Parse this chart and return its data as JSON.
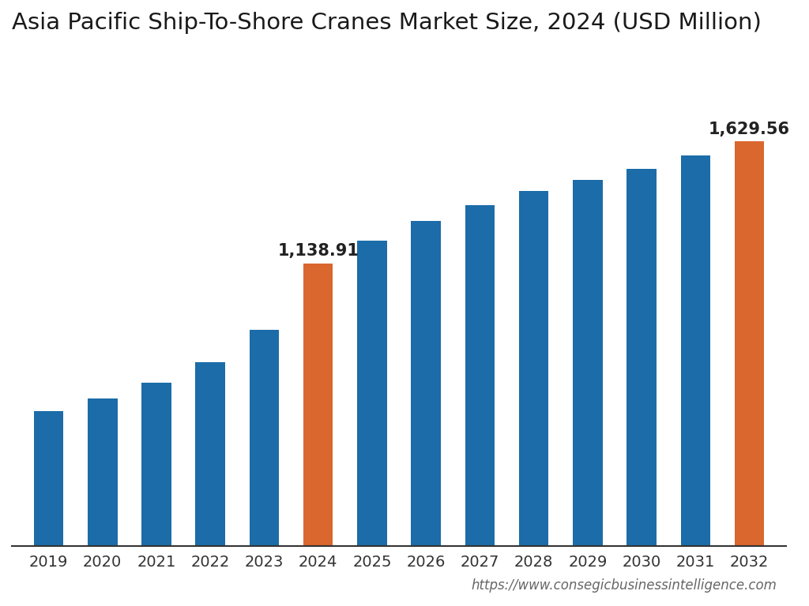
{
  "title": "Asia Pacific Ship-To-Shore Cranes Market Size, 2024 (USD Million)",
  "years": [
    2019,
    2020,
    2021,
    2022,
    2023,
    2024,
    2025,
    2026,
    2027,
    2028,
    2029,
    2030,
    2031,
    2032
  ],
  "values": [
    545,
    595,
    660,
    740,
    870,
    1138.91,
    1230,
    1310,
    1375,
    1430,
    1475,
    1520,
    1575,
    1629.56
  ],
  "bar_colors": [
    "#1b6ca8",
    "#1b6ca8",
    "#1b6ca8",
    "#1b6ca8",
    "#1b6ca8",
    "#d9672e",
    "#1b6ca8",
    "#1b6ca8",
    "#1b6ca8",
    "#1b6ca8",
    "#1b6ca8",
    "#1b6ca8",
    "#1b6ca8",
    "#d9672e"
  ],
  "highlight_labels": {
    "2024": "1,138.91",
    "2032": "1,629.56"
  },
  "background_color": "#ffffff",
  "title_fontsize": 21,
  "tick_fontsize": 14,
  "annotation_fontsize": 15,
  "url_text": "https://www.consegicbusinessintelligence.com",
  "url_fontsize": 12,
  "ylim": [
    0,
    1950
  ],
  "bar_width": 0.55
}
